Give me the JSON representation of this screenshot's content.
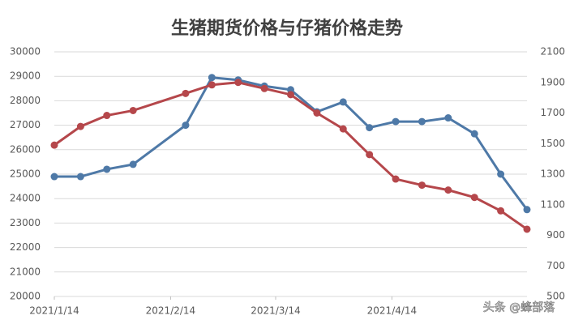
{
  "chart_data": {
    "type": "line",
    "title": "生猪期货价格与仔猪价格走势",
    "watermark": "头条 @蜂部落",
    "x": [
      0,
      7,
      14,
      21,
      35,
      42,
      49,
      56,
      63,
      70,
      77,
      84,
      91,
      98,
      105,
      112,
      119,
      126
    ],
    "xlim": [
      0,
      126
    ],
    "xticks": [
      {
        "value": 0,
        "label": "2021/1/14"
      },
      {
        "value": 31,
        "label": "2021/2/14"
      },
      {
        "value": 59,
        "label": "2021/3/14"
      },
      {
        "value": 90,
        "label": "2021/4/14"
      }
    ],
    "ylim": [
      20000,
      30000
    ],
    "yticks": [
      20000,
      21000,
      22000,
      23000,
      24000,
      25000,
      26000,
      27000,
      28000,
      29000,
      30000
    ],
    "y2lim": [
      500,
      2100
    ],
    "y2ticks": [
      500,
      700,
      900,
      1100,
      1300,
      1500,
      1700,
      1900,
      2100
    ],
    "grid": true,
    "series": [
      {
        "color": "#4e79a7",
        "values": [
          24900,
          24900,
          25200,
          25400,
          27000,
          28950,
          28850,
          28600,
          28450,
          27550,
          27950,
          26900,
          27150,
          27150,
          27300,
          26650,
          25000,
          23550
        ]
      },
      {
        "color": "#b5474b",
        "axis": "y2",
        "values": [
          1490,
          1612,
          1684,
          1716,
          1828,
          1884,
          1900,
          1860,
          1820,
          1700,
          1596,
          1428,
          1268,
          1228,
          1196,
          1148,
          1060,
          940
        ]
      }
    ]
  }
}
